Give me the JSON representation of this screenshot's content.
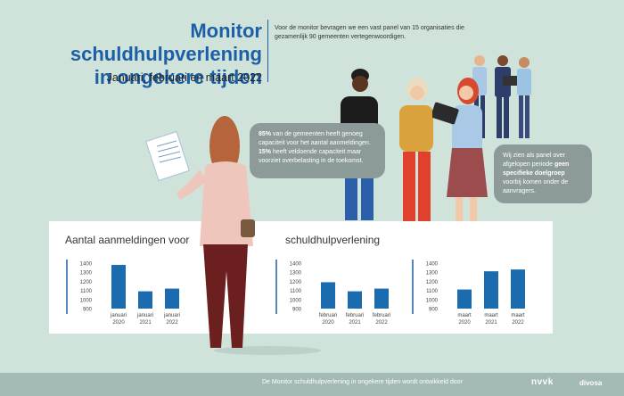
{
  "header": {
    "title_line1": "Monitor schuldhulpverlening",
    "title_line2": "in ongekere tijden",
    "subtitle": "Januari, februari en maart 2022",
    "intro": "Voor de monitor bevragen we een vast panel van 15 organisaties die gezamenlijk 90 gemeenten vertegenwoordigen."
  },
  "bubble1": {
    "pct1": "85%",
    "text1": " van de gemeenten heeft genoeg capaciteit voor het aantal aanmeldingen. ",
    "pct2": "15%",
    "text2": " heeft veldoende capaciteit maar voorziet overbelasting in de toekomst."
  },
  "bubble2": {
    "text1": "Wij zien als panel over afgelopen periode ",
    "bold": "geen specifieke doelgroep",
    "text2": " voorbij komen onder de aanvragers."
  },
  "panel": {
    "title_part1": "Aantal aanmeldingen voor",
    "title_part2": "schuldhulpverlening"
  },
  "chart_data": [
    {
      "type": "bar",
      "categories": [
        "januari 2020",
        "januari 2021",
        "januari 2022"
      ],
      "values": [
        1380,
        1090,
        1120
      ],
      "yticks": [
        1400,
        1300,
        1200,
        1100,
        1000,
        900
      ],
      "ylim": [
        900,
        1400
      ]
    },
    {
      "type": "bar",
      "categories": [
        "februari 2020",
        "februari 2021",
        "februari 2022"
      ],
      "values": [
        1190,
        1090,
        1120
      ],
      "yticks": [
        1400,
        1300,
        1200,
        1100,
        1000,
        900
      ],
      "ylim": [
        900,
        1400
      ]
    },
    {
      "type": "bar",
      "categories": [
        "maart 2020",
        "maart 2021",
        "maart 2022"
      ],
      "values": [
        1110,
        1310,
        1330
      ],
      "yticks": [
        1400,
        1300,
        1200,
        1100,
        1000,
        900
      ],
      "ylim": [
        900,
        1400
      ]
    }
  ],
  "colors": {
    "bar": "#1b6cae",
    "axis": "#1d5fa6",
    "background": "#cfe3da",
    "bubble": "#8c9a99"
  },
  "footer": {
    "text": "De Monitor schuldhulpverlening in ongekere tijden wordt ontwikkeld door",
    "logo1": "nvvk",
    "logo2": "divosa"
  }
}
